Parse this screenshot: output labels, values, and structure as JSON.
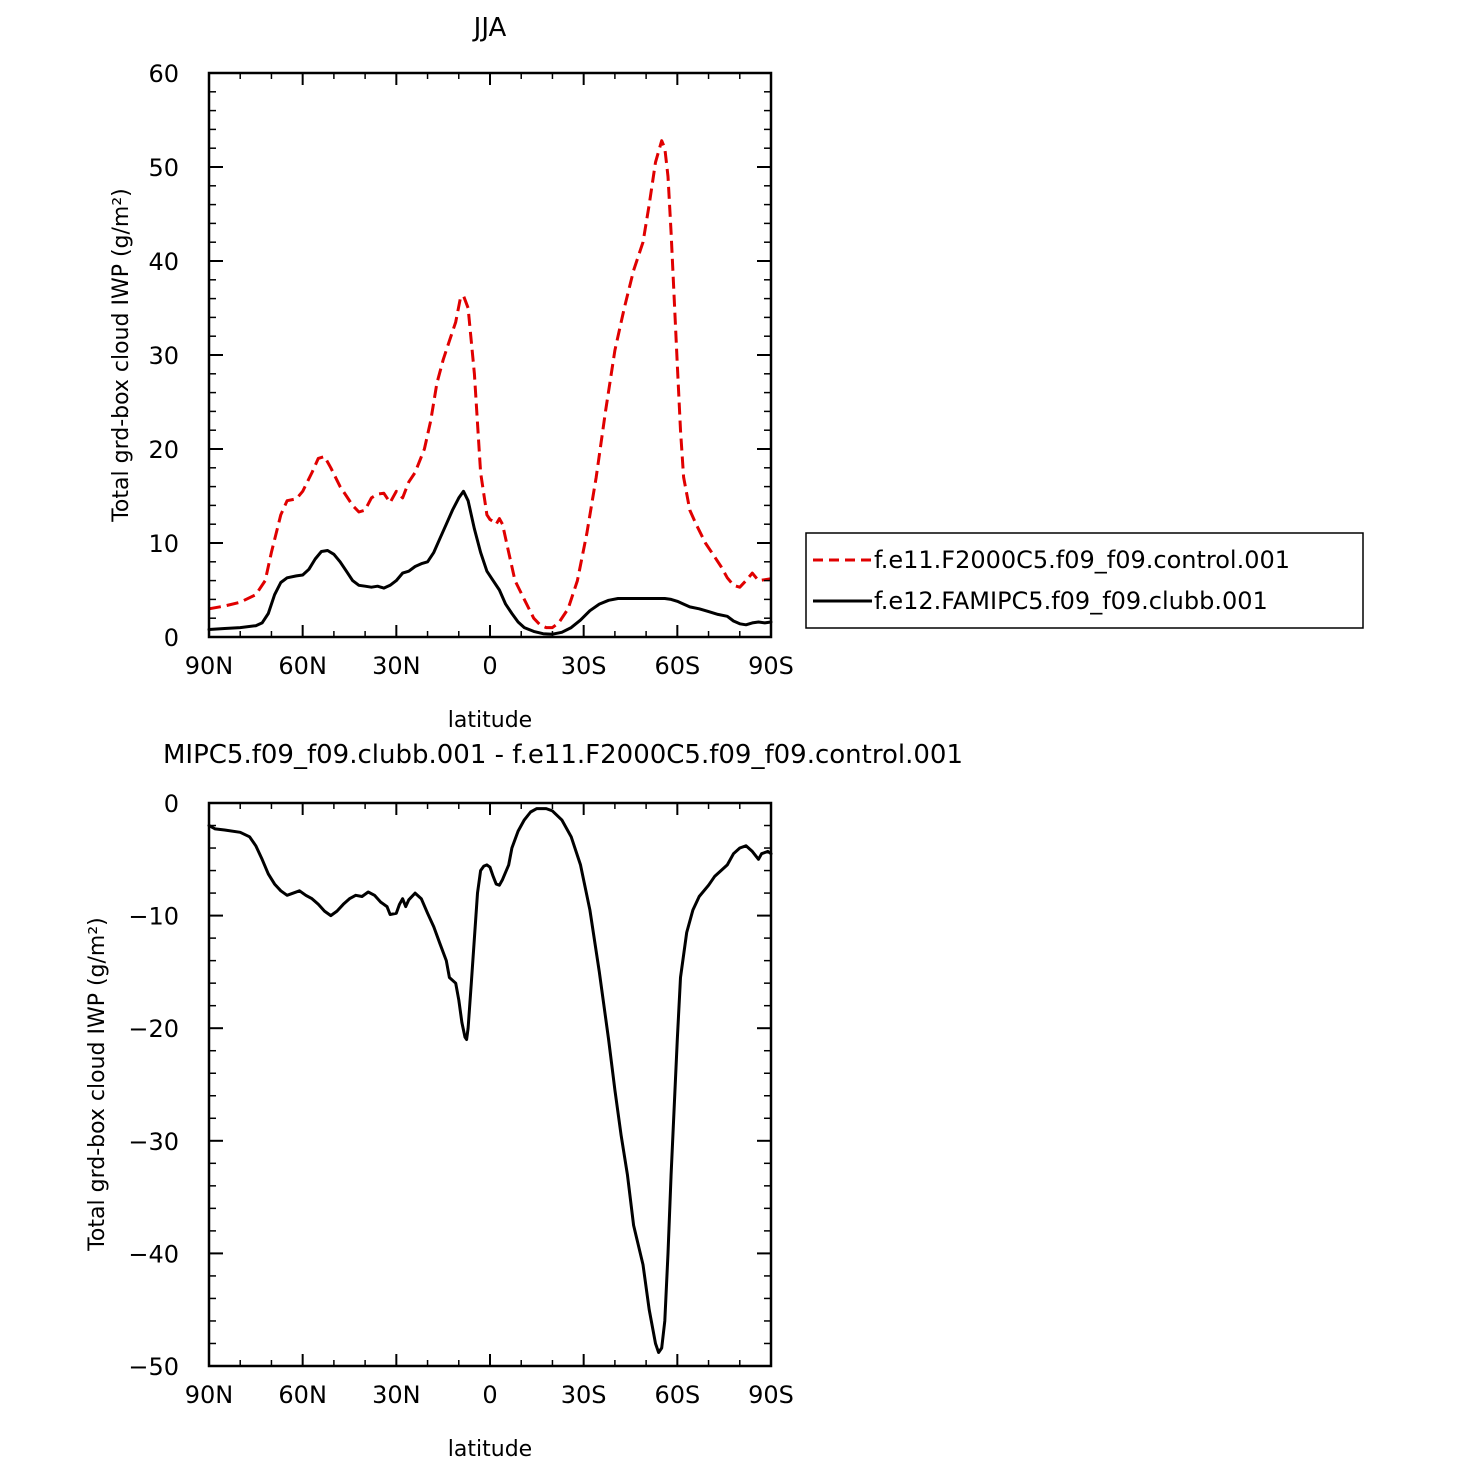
{
  "chart_data": [
    {
      "type": "line",
      "title": "JJA",
      "xlabel": "latitude",
      "ylabel": "Total grd-box cloud IWP (g/m²)",
      "xlim": [
        90,
        -90
      ],
      "ylim": [
        0,
        60
      ],
      "x_ticks": [
        "90N",
        "60N",
        "30N",
        "0",
        "30S",
        "60S",
        "90S"
      ],
      "x_tick_values": [
        90,
        60,
        30,
        0,
        -30,
        -60,
        -90
      ],
      "y_ticks": [
        "0",
        "10",
        "20",
        "30",
        "40",
        "50",
        "60"
      ],
      "y_tick_values": [
        0,
        10,
        20,
        30,
        40,
        50,
        60
      ],
      "legend_position": "right",
      "series": [
        {
          "name": "f.e11.F2000C5.f09_f09.control.001",
          "color": "#e00000",
          "style": "dashed",
          "points": [
            [
              90,
              3.0
            ],
            [
              85,
              3.3
            ],
            [
              80,
              3.7
            ],
            [
              75,
              4.5
            ],
            [
              72,
              6.0
            ],
            [
              70,
              9.0
            ],
            [
              67,
              13.0
            ],
            [
              65,
              14.5
            ],
            [
              62,
              14.7
            ],
            [
              60,
              15.5
            ],
            [
              57,
              17.5
            ],
            [
              55,
              19.0
            ],
            [
              53,
              19.2
            ],
            [
              51,
              18.0
            ],
            [
              48,
              16.0
            ],
            [
              46,
              15.0
            ],
            [
              44,
              14.0
            ],
            [
              42,
              13.3
            ],
            [
              40,
              13.5
            ],
            [
              38,
              14.8
            ],
            [
              36,
              15.2
            ],
            [
              34,
              15.3
            ],
            [
              32,
              14.3
            ],
            [
              30,
              15.5
            ],
            [
              28,
              14.8
            ],
            [
              26,
              16.5
            ],
            [
              24,
              17.5
            ],
            [
              21,
              20.0
            ],
            [
              19,
              23.0
            ],
            [
              17,
              27.0
            ],
            [
              15,
              29.5
            ],
            [
              13,
              31.5
            ],
            [
              11,
              33.5
            ],
            [
              9.5,
              36.0
            ],
            [
              8.5,
              36.3
            ],
            [
              7,
              35.0
            ],
            [
              5,
              28.0
            ],
            [
              3,
              17.5
            ],
            [
              1,
              13.0
            ],
            [
              0,
              12.5
            ],
            [
              -1,
              12.3
            ],
            [
              -2,
              12.0
            ],
            [
              -3,
              12.6
            ],
            [
              -4,
              12.0
            ],
            [
              -6,
              9.0
            ],
            [
              -8,
              6.0
            ],
            [
              -11,
              4.0
            ],
            [
              -14,
              2.0
            ],
            [
              -16,
              1.3
            ],
            [
              -18,
              1.0
            ],
            [
              -20,
              1.0
            ],
            [
              -22,
              1.5
            ],
            [
              -25,
              3.0
            ],
            [
              -28,
              6.0
            ],
            [
              -31,
              11.0
            ],
            [
              -34,
              17.0
            ],
            [
              -37,
              24.0
            ],
            [
              -40,
              30.5
            ],
            [
              -43,
              35.0
            ],
            [
              -46,
              39.0
            ],
            [
              -49,
              42.0
            ],
            [
              -51,
              46.0
            ],
            [
              -53,
              50.5
            ],
            [
              -55,
              52.8
            ],
            [
              -56,
              52.0
            ],
            [
              -57,
              49.0
            ],
            [
              -58,
              43.0
            ],
            [
              -59,
              36.0
            ],
            [
              -60,
              29.0
            ],
            [
              -61,
              22.0
            ],
            [
              -62,
              17.0
            ],
            [
              -64,
              13.5
            ],
            [
              -66,
              12.0
            ],
            [
              -69,
              10.0
            ],
            [
              -72,
              8.5
            ],
            [
              -74,
              7.5
            ],
            [
              -76,
              6.3
            ],
            [
              -78,
              5.5
            ],
            [
              -80,
              5.3
            ],
            [
              -82,
              6.0
            ],
            [
              -84,
              6.8
            ],
            [
              -86,
              6.0
            ],
            [
              -88,
              6.1
            ],
            [
              -90,
              6.2
            ]
          ]
        },
        {
          "name": "f.e12.FAMIPC5.f09_f09.clubb.001",
          "color": "#000000",
          "style": "solid",
          "points": [
            [
              90,
              0.8
            ],
            [
              85,
              0.9
            ],
            [
              80,
              1.0
            ],
            [
              75,
              1.2
            ],
            [
              73,
              1.5
            ],
            [
              71,
              2.5
            ],
            [
              69,
              4.5
            ],
            [
              67,
              5.8
            ],
            [
              65,
              6.3
            ],
            [
              62,
              6.5
            ],
            [
              60,
              6.6
            ],
            [
              58,
              7.2
            ],
            [
              56,
              8.3
            ],
            [
              54,
              9.1
            ],
            [
              52,
              9.2
            ],
            [
              50,
              8.8
            ],
            [
              48,
              8.0
            ],
            [
              46,
              7.0
            ],
            [
              44,
              6.0
            ],
            [
              42,
              5.5
            ],
            [
              40,
              5.4
            ],
            [
              38,
              5.3
            ],
            [
              36,
              5.4
            ],
            [
              34,
              5.2
            ],
            [
              32,
              5.5
            ],
            [
              30,
              6.0
            ],
            [
              28,
              6.8
            ],
            [
              26,
              7.0
            ],
            [
              24,
              7.5
            ],
            [
              22,
              7.8
            ],
            [
              20,
              8.0
            ],
            [
              18,
              9.0
            ],
            [
              16,
              10.5
            ],
            [
              14,
              12.0
            ],
            [
              12,
              13.5
            ],
            [
              10,
              14.8
            ],
            [
              8.5,
              15.5
            ],
            [
              7,
              14.5
            ],
            [
              5,
              11.5
            ],
            [
              3,
              9.0
            ],
            [
              1,
              7.0
            ],
            [
              -1,
              6.0
            ],
            [
              -3,
              5.0
            ],
            [
              -5,
              3.5
            ],
            [
              -7,
              2.5
            ],
            [
              -9,
              1.6
            ],
            [
              -11,
              1.0
            ],
            [
              -14,
              0.6
            ],
            [
              -17,
              0.35
            ],
            [
              -20,
              0.3
            ],
            [
              -23,
              0.5
            ],
            [
              -26,
              1.0
            ],
            [
              -29,
              1.8
            ],
            [
              -32,
              2.8
            ],
            [
              -35,
              3.5
            ],
            [
              -38,
              3.9
            ],
            [
              -41,
              4.1
            ],
            [
              -44,
              4.1
            ],
            [
              -47,
              4.1
            ],
            [
              -50,
              4.1
            ],
            [
              -53,
              4.1
            ],
            [
              -56,
              4.1
            ],
            [
              -58,
              4.0
            ],
            [
              -60,
              3.8
            ],
            [
              -62,
              3.5
            ],
            [
              -64,
              3.2
            ],
            [
              -67,
              3.0
            ],
            [
              -70,
              2.7
            ],
            [
              -73,
              2.4
            ],
            [
              -76,
              2.2
            ],
            [
              -78,
              1.7
            ],
            [
              -80,
              1.4
            ],
            [
              -82,
              1.3
            ],
            [
              -84,
              1.5
            ],
            [
              -86,
              1.6
            ],
            [
              -88,
              1.5
            ],
            [
              -90,
              1.6
            ]
          ]
        }
      ]
    },
    {
      "type": "line",
      "title": "MIPC5.f09_f09.clubb.001 - f.e11.F2000C5.f09_f09.control.001",
      "xlabel": "latitude",
      "ylabel": "Total grd-box cloud IWP (g/m²)",
      "xlim": [
        90,
        -90
      ],
      "ylim": [
        -50,
        0
      ],
      "x_ticks": [
        "90N",
        "60N",
        "30N",
        "0",
        "30S",
        "60S",
        "90S"
      ],
      "x_tick_values": [
        90,
        60,
        30,
        0,
        -30,
        -60,
        -90
      ],
      "y_ticks": [
        "0",
        "−10",
        "−20",
        "−30",
        "−40",
        "−50"
      ],
      "y_tick_values": [
        0,
        -10,
        -20,
        -30,
        -40,
        -50
      ],
      "series": [
        {
          "color": "#000000",
          "style": "solid",
          "points": [
            [
              90,
              -2.0
            ],
            [
              88,
              -2.3
            ],
            [
              85,
              -2.4
            ],
            [
              80,
              -2.6
            ],
            [
              77,
              -3.0
            ],
            [
              75,
              -3.8
            ],
            [
              73,
              -5.0
            ],
            [
              71,
              -6.3
            ],
            [
              69,
              -7.2
            ],
            [
              67,
              -7.8
            ],
            [
              65,
              -8.2
            ],
            [
              63,
              -8.0
            ],
            [
              61,
              -7.8
            ],
            [
              59,
              -8.2
            ],
            [
              57,
              -8.5
            ],
            [
              55,
              -9.0
            ],
            [
              53,
              -9.6
            ],
            [
              51,
              -10.0
            ],
            [
              49,
              -9.6
            ],
            [
              47,
              -9.0
            ],
            [
              45,
              -8.5
            ],
            [
              43,
              -8.2
            ],
            [
              41,
              -8.3
            ],
            [
              39,
              -7.9
            ],
            [
              37,
              -8.2
            ],
            [
              35,
              -8.8
            ],
            [
              33,
              -9.2
            ],
            [
              32,
              -9.9
            ],
            [
              30,
              -9.8
            ],
            [
              29,
              -9.0
            ],
            [
              28,
              -8.5
            ],
            [
              27,
              -9.2
            ],
            [
              26,
              -8.6
            ],
            [
              24,
              -8.0
            ],
            [
              22,
              -8.5
            ],
            [
              20,
              -9.8
            ],
            [
              18,
              -11.0
            ],
            [
              16,
              -12.5
            ],
            [
              14,
              -14.0
            ],
            [
              13,
              -15.5
            ],
            [
              11,
              -16.0
            ],
            [
              10,
              -17.5
            ],
            [
              9,
              -19.5
            ],
            [
              8,
              -20.8
            ],
            [
              7.5,
              -21.0
            ],
            [
              7,
              -20.0
            ],
            [
              6,
              -16.0
            ],
            [
              5,
              -12.0
            ],
            [
              4,
              -8.0
            ],
            [
              3,
              -6.0
            ],
            [
              2,
              -5.6
            ],
            [
              1,
              -5.5
            ],
            [
              0,
              -5.7
            ],
            [
              -1,
              -6.5
            ],
            [
              -2,
              -7.2
            ],
            [
              -3,
              -7.3
            ],
            [
              -4,
              -6.8
            ],
            [
              -6,
              -5.5
            ],
            [
              -7,
              -4.0
            ],
            [
              -9,
              -2.5
            ],
            [
              -11,
              -1.5
            ],
            [
              -13,
              -0.8
            ],
            [
              -15,
              -0.5
            ],
            [
              -18,
              -0.5
            ],
            [
              -20,
              -0.7
            ],
            [
              -23,
              -1.5
            ],
            [
              -26,
              -3.0
            ],
            [
              -29,
              -5.5
            ],
            [
              -32,
              -9.5
            ],
            [
              -35,
              -15.0
            ],
            [
              -38,
              -21.0
            ],
            [
              -40,
              -25.5
            ],
            [
              -42,
              -29.5
            ],
            [
              -44,
              -33.0
            ],
            [
              -46,
              -37.5
            ],
            [
              -49,
              -41.0
            ],
            [
              -51,
              -45.0
            ],
            [
              -53,
              -48.0
            ],
            [
              -54,
              -48.8
            ],
            [
              -55,
              -48.4
            ],
            [
              -56,
              -46.0
            ],
            [
              -57,
              -40.0
            ],
            [
              -58,
              -33.0
            ],
            [
              -59,
              -27.0
            ],
            [
              -60,
              -21.0
            ],
            [
              -61,
              -15.5
            ],
            [
              -63,
              -11.5
            ],
            [
              -65,
              -9.5
            ],
            [
              -67,
              -8.3
            ],
            [
              -70,
              -7.3
            ],
            [
              -72,
              -6.5
            ],
            [
              -74,
              -6.0
            ],
            [
              -76,
              -5.5
            ],
            [
              -78,
              -4.5
            ],
            [
              -80,
              -4.0
            ],
            [
              -82,
              -3.8
            ],
            [
              -84,
              -4.3
            ],
            [
              -86,
              -5.0
            ],
            [
              -87,
              -4.5
            ],
            [
              -89,
              -4.3
            ],
            [
              -90,
              -4.5
            ]
          ]
        }
      ]
    }
  ]
}
